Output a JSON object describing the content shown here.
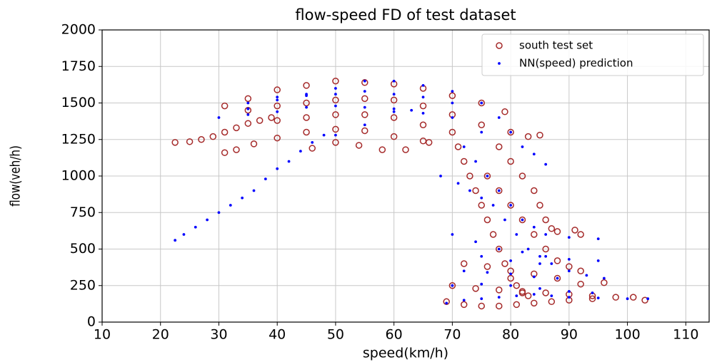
{
  "chart_data": {
    "type": "scatter",
    "title": "flow-speed FD of test dataset",
    "x_label": "speed(km/h)",
    "y_label": "flow(veh/h)",
    "xlim": [
      10,
      114
    ],
    "ylim": [
      0,
      2000
    ],
    "xticks": [
      10,
      20,
      30,
      40,
      50,
      60,
      70,
      80,
      90,
      100,
      110
    ],
    "yticks": [
      0,
      250,
      500,
      750,
      1000,
      1250,
      1500,
      1750,
      2000
    ],
    "grid": true,
    "legend": "upper right",
    "series": [
      {
        "name": "south test set",
        "color": "#a52a2a",
        "marker": "open-circle",
        "x": [
          22.5,
          25,
          27,
          29,
          31,
          33,
          35,
          37,
          39,
          31,
          33,
          36,
          40,
          45,
          50,
          55,
          60,
          65,
          46,
          50,
          54,
          58,
          62,
          66,
          31,
          35,
          40,
          45,
          50,
          55,
          60,
          65,
          70,
          75,
          79,
          35,
          40,
          45,
          50,
          55,
          60,
          65,
          70,
          75,
          40,
          45,
          50,
          55,
          60,
          65,
          70,
          71,
          72,
          73,
          74,
          75,
          76,
          77,
          78,
          79,
          80,
          81,
          82,
          83,
          78,
          80,
          82,
          84,
          85,
          86,
          87,
          88,
          91,
          92,
          76,
          78,
          80,
          82,
          84,
          86,
          88,
          90,
          92,
          69,
          72,
          75,
          78,
          81,
          84,
          87,
          90,
          94,
          98,
          101,
          103,
          70,
          74,
          78,
          82,
          86,
          90,
          94,
          96,
          72,
          76,
          80,
          84,
          88,
          92,
          85,
          83,
          80
        ],
        "values": [
          1230,
          1235,
          1250,
          1270,
          1300,
          1330,
          1360,
          1380,
          1400,
          1160,
          1180,
          1220,
          1260,
          1300,
          1320,
          1310,
          1270,
          1240,
          1190,
          1230,
          1210,
          1180,
          1180,
          1230,
          1480,
          1530,
          1590,
          1620,
          1650,
          1640,
          1630,
          1600,
          1550,
          1500,
          1440,
          1450,
          1480,
          1500,
          1520,
          1530,
          1520,
          1480,
          1420,
          1350,
          1380,
          1400,
          1420,
          1420,
          1400,
          1350,
          1300,
          1200,
          1100,
          1000,
          900,
          800,
          700,
          600,
          500,
          400,
          300,
          250,
          200,
          180,
          1200,
          1100,
          1000,
          900,
          800,
          700,
          640,
          620,
          630,
          600,
          1000,
          900,
          800,
          700,
          600,
          500,
          420,
          380,
          350,
          140,
          120,
          110,
          110,
          120,
          130,
          140,
          150,
          160,
          170,
          170,
          150,
          250,
          230,
          220,
          210,
          200,
          190,
          180,
          270,
          400,
          380,
          350,
          330,
          300,
          260,
          1280,
          1270,
          1300
        ]
      },
      {
        "name": "NN(speed) prediction",
        "color": "#0000ff",
        "marker": "dot",
        "x": [
          22.5,
          24,
          26,
          28,
          30,
          32,
          34,
          36,
          38,
          40,
          42,
          44,
          46,
          48,
          30,
          35,
          40,
          45,
          50,
          55,
          60,
          65,
          70,
          75,
          78,
          80,
          82,
          84,
          86,
          35,
          40,
          45,
          50,
          55,
          60,
          65,
          70,
          35,
          40,
          45,
          50,
          55,
          60,
          65,
          70,
          75,
          50,
          55,
          60,
          63,
          68,
          71,
          73,
          75,
          77,
          79,
          81,
          83,
          85,
          87,
          90,
          93,
          96,
          72,
          74,
          76,
          78,
          80,
          82,
          84,
          86,
          90,
          95,
          70,
          74,
          78,
          82,
          86,
          90,
          95,
          75,
          80,
          85,
          69,
          72,
          75,
          78,
          81,
          84,
          87,
          90,
          95,
          100,
          103.5,
          70,
          75,
          80,
          85,
          90,
          94,
          72,
          76,
          80,
          84,
          88
        ],
        "values": [
          560,
          600,
          650,
          700,
          750,
          800,
          850,
          900,
          980,
          1050,
          1100,
          1170,
          1230,
          1280,
          1400,
          1460,
          1520,
          1560,
          1600,
          1650,
          1650,
          1620,
          1580,
          1500,
          1400,
          1300,
          1200,
          1150,
          1080,
          1500,
          1540,
          1550,
          1560,
          1580,
          1560,
          1540,
          1500,
          1420,
          1440,
          1470,
          1480,
          1470,
          1460,
          1430,
          1400,
          1300,
          1280,
          1350,
          1440,
          1450,
          1000,
          950,
          900,
          850,
          800,
          700,
          600,
          500,
          450,
          400,
          350,
          320,
          300,
          1200,
          1100,
          1000,
          900,
          800,
          700,
          650,
          600,
          580,
          570,
          600,
          550,
          500,
          480,
          450,
          430,
          420,
          450,
          420,
          400,
          130,
          150,
          160,
          170,
          180,
          190,
          180,
          170,
          165,
          160,
          160,
          250,
          260,
          250,
          230,
          210,
          200,
          350,
          340,
          330,
          310,
          300
        ]
      }
    ]
  }
}
